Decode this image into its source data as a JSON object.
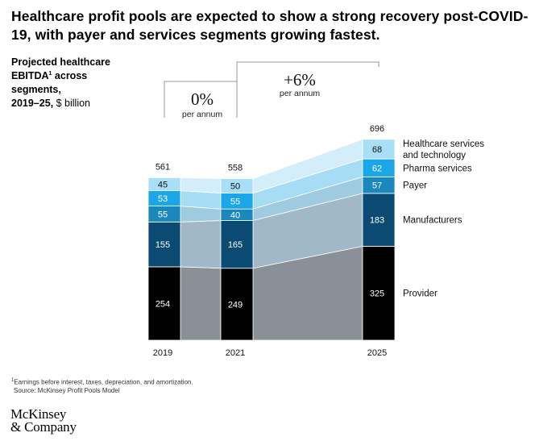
{
  "title": "Healthcare profit pools are expected to show a strong recovery post-COVID-19, with payer and services segments growing fastest.",
  "subtitle": {
    "line1": "Projected healthcare",
    "line2a": "EBITDA",
    "sup": "1",
    "line2b": " across",
    "line3": "segments,",
    "line4_bold": "2019–25,",
    "line4_unit": " $ billion"
  },
  "footnote": "Earnings before interest, taxes, depreciation, and amortization.",
  "footnote_marker": "1",
  "source": "Source: McKinsey Profit Pools Model",
  "logo": {
    "line1": "McKinsey",
    "line2": "& Company"
  },
  "growth": [
    {
      "value": "0%",
      "label": "per annum"
    },
    {
      "value": "+6%",
      "label": "per annum"
    }
  ],
  "chart_data": {
    "type": "bar",
    "stacked": true,
    "categories": [
      "2019",
      "2021",
      "2025"
    ],
    "totals": [
      561,
      558,
      696
    ],
    "series": [
      {
        "name": "Provider",
        "values": [
          254,
          249,
          325
        ],
        "color": "#000000",
        "band_color": "#8a9097"
      },
      {
        "name": "Manufacturers",
        "values": [
          155,
          165,
          183
        ],
        "color": "#0a4a73",
        "band_color": "#a1b8c8"
      },
      {
        "name": "Payer",
        "values": [
          55,
          40,
          57
        ],
        "color": "#1b88bd",
        "band_color": "#9fcbe0"
      },
      {
        "name": "Pharma services",
        "values": [
          53,
          55,
          62
        ],
        "color": "#1ba6e8",
        "band_color": "#a6dcf4"
      },
      {
        "name": "Healthcare services and technology",
        "values": [
          45,
          50,
          68
        ],
        "color": "#a9dff6",
        "band_color": "#d3eefa"
      }
    ],
    "legend_position": "right",
    "gridlines": false
  }
}
